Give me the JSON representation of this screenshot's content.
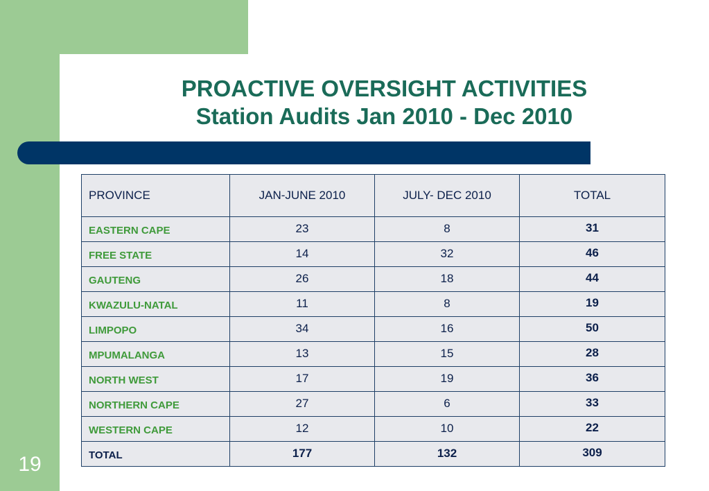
{
  "slide": {
    "title_line1": "PROACTIVE OVERSIGHT ACTIVITIES",
    "title_line2": "Station Audits Jan 2010 - Dec 2010",
    "number": "19"
  },
  "colors": {
    "accent_green": "#9ccb94",
    "title_green": "#1a6b58",
    "navy": "#003566",
    "province_green": "#3f9a3a"
  },
  "table": {
    "headers": [
      "PROVINCE",
      "JAN-JUNE 2010",
      "JULY- DEC 2010",
      "TOTAL"
    ],
    "rows": [
      {
        "province": "EASTERN CAPE",
        "jan_june": "23",
        "july_dec": "8",
        "total": "31"
      },
      {
        "province": "FREE STATE",
        "jan_june": "14",
        "july_dec": "32",
        "total": "46"
      },
      {
        "province": "GAUTENG",
        "jan_june": "26",
        "july_dec": "18",
        "total": "44"
      },
      {
        "province": "KWAZULU-NATAL",
        "jan_june": "11",
        "july_dec": "8",
        "total": "19"
      },
      {
        "province": "LIMPOPO",
        "jan_june": "34",
        "july_dec": "16",
        "total": "50"
      },
      {
        "province": "MPUMALANGA",
        "jan_june": "13",
        "july_dec": "15",
        "total": "28"
      },
      {
        "province": "NORTH WEST",
        "jan_june": "17",
        "july_dec": "19",
        "total": "36"
      },
      {
        "province": "NORTHERN CAPE",
        "jan_june": "27",
        "july_dec": "6",
        "total": "33"
      },
      {
        "province": "WESTERN CAPE",
        "jan_june": "12",
        "july_dec": "10",
        "total": "22"
      }
    ],
    "total_row": {
      "province": "TOTAL",
      "jan_june": "177",
      "july_dec": "132",
      "total": "309"
    }
  }
}
